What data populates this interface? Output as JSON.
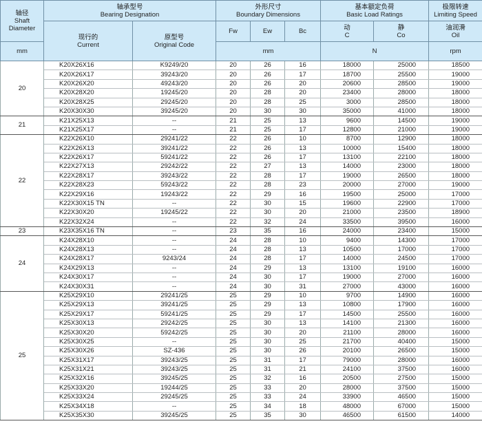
{
  "header": {
    "shaft": {
      "zh": "轴径",
      "en1": "Shaft",
      "en2": "Diameter",
      "unit": "mm"
    },
    "designation": {
      "zh": "轴承型号",
      "en": "Bearing Designation",
      "current_zh": "现行的",
      "current_en": "Current",
      "original_zh": "原型号",
      "original_en": "Original Code"
    },
    "boundary": {
      "zh": "外形尺寸",
      "en": "Boundary Dimensions",
      "fw": "Fw",
      "ew": "Ew",
      "bc": "Bc",
      "unit": "mm"
    },
    "load": {
      "zh": "基本额定负荷",
      "en": "Basic Load Ratings",
      "c_zh": "动",
      "c": "C",
      "co_zh": "静",
      "co": "Co",
      "unit": "N"
    },
    "speed": {
      "zh": "极限转速",
      "en": "Limiting Speed",
      "oil_zh": "油润滑",
      "oil": "Oil",
      "unit": "rpm"
    }
  },
  "groups": [
    {
      "d": "20",
      "rows": [
        [
          "K20X26X16",
          "K9249/20",
          "20",
          "26",
          "16",
          "18000",
          "25000",
          "18500"
        ],
        [
          "K20X26X17",
          "39243/20",
          "20",
          "26",
          "17",
          "18700",
          "25500",
          "19000"
        ],
        [
          "K20X26X20",
          "49243/20",
          "20",
          "26",
          "20",
          "20600",
          "28500",
          "19000"
        ],
        [
          "K20X28X20",
          "19245/20",
          "20",
          "28",
          "20",
          "23400",
          "28000",
          "18000"
        ],
        [
          "K20X28X25",
          "29245/20",
          "20",
          "28",
          "25",
          "3000",
          "28500",
          "18000"
        ],
        [
          "K20X30X30",
          "39245/20",
          "20",
          "30",
          "30",
          "35000",
          "41000",
          "18000"
        ]
      ]
    },
    {
      "d": "21",
      "rows": [
        [
          "K21X25X13",
          "--",
          "21",
          "25",
          "13",
          "9600",
          "14500",
          "19000"
        ],
        [
          "K21X25X17",
          "--",
          "21",
          "25",
          "17",
          "12800",
          "21000",
          "19000"
        ]
      ]
    },
    {
      "d": "22",
      "rows": [
        [
          "K22X26X10",
          "29241/22",
          "22",
          "26",
          "10",
          "8700",
          "12900",
          "18000"
        ],
        [
          "K22X26X13",
          "39241/22",
          "22",
          "26",
          "13",
          "10000",
          "15400",
          "18000"
        ],
        [
          "K22X26X17",
          "59241/22",
          "22",
          "26",
          "17",
          "13100",
          "22100",
          "18000"
        ],
        [
          "K22X27X13",
          "29242/22",
          "22",
          "27",
          "13",
          "14000",
          "23000",
          "18000"
        ],
        [
          "K22X28X17",
          "39243/22",
          "22",
          "28",
          "17",
          "19000",
          "26500",
          "18000"
        ],
        [
          "K22X28X23",
          "59243/22",
          "22",
          "28",
          "23",
          "20000",
          "27000",
          "19000"
        ],
        [
          "K22X29X16",
          "19243/22",
          "22",
          "29",
          "16",
          "19500",
          "25000",
          "17000"
        ],
        [
          "K22X30X15 TN",
          "--",
          "22",
          "30",
          "15",
          "19600",
          "22900",
          "17000"
        ],
        [
          "K22X30X20",
          "19245/22",
          "22",
          "30",
          "20",
          "21000",
          "23500",
          "18900"
        ],
        [
          "K22X32X24",
          "--",
          "22",
          "32",
          "24",
          "33500",
          "39500",
          "16000"
        ]
      ]
    },
    {
      "d": "23",
      "rows": [
        [
          "K23X35X16 TN",
          "--",
          "23",
          "35",
          "16",
          "24000",
          "23400",
          "15000"
        ]
      ]
    },
    {
      "d": "24",
      "rows": [
        [
          "K24X28X10",
          "--",
          "24",
          "28",
          "10",
          "9400",
          "14300",
          "17000"
        ],
        [
          "K24X28X13",
          "--",
          "24",
          "28",
          "13",
          "10500",
          "17000",
          "17000"
        ],
        [
          "K24X28X17",
          "9243/24",
          "24",
          "28",
          "17",
          "14000",
          "24500",
          "17000"
        ],
        [
          "K24X29X13",
          "--",
          "24",
          "29",
          "13",
          "13100",
          "19100",
          "16000"
        ],
        [
          "K24X30X17",
          "--",
          "24",
          "30",
          "17",
          "19000",
          "27000",
          "16000"
        ],
        [
          "K24X30X31",
          "--",
          "24",
          "30",
          "31",
          "27000",
          "43000",
          "16000"
        ]
      ]
    },
    {
      "d": "25",
      "rows": [
        [
          "K25X29X10",
          "29241/25",
          "25",
          "29",
          "10",
          "9700",
          "14900",
          "16000"
        ],
        [
          "K25X29X13",
          "39241/25",
          "25",
          "29",
          "13",
          "10800",
          "17900",
          "16000"
        ],
        [
          "K25X29X17",
          "59241/25",
          "25",
          "29",
          "17",
          "14500",
          "25500",
          "16000"
        ],
        [
          "K25X30X13",
          "29242/25",
          "25",
          "30",
          "13",
          "14100",
          "21300",
          "16000"
        ],
        [
          "K25X30X20",
          "59242/25",
          "25",
          "30",
          "20",
          "21100",
          "28000",
          "16000"
        ],
        [
          "K25X30X25",
          "--",
          "25",
          "30",
          "25",
          "21700",
          "40400",
          "15000"
        ],
        [
          "K25X30X26",
          "SZ-436",
          "25",
          "30",
          "26",
          "20100",
          "26500",
          "15000"
        ],
        [
          "K25X31X17",
          "39243/25",
          "25",
          "31",
          "17",
          "79000",
          "28000",
          "16000"
        ],
        [
          "K25X31X21",
          "39243/25",
          "25",
          "31",
          "21",
          "24100",
          "37500",
          "16000"
        ],
        [
          "K25X32X16",
          "39245/25",
          "25",
          "32",
          "16",
          "20500",
          "27500",
          "15000"
        ],
        [
          "K25X33X20",
          "19244/25",
          "25",
          "33",
          "20",
          "28000",
          "37500",
          "15000"
        ],
        [
          "K25X33X24",
          "29245/25",
          "25",
          "33",
          "24",
          "33900",
          "46500",
          "15000"
        ],
        [
          "K25X34X18",
          "--",
          "25",
          "34",
          "18",
          "48000",
          "67000",
          "15000"
        ],
        [
          "K25X35X30",
          "39245/25",
          "25",
          "35",
          "30",
          "46500",
          "61500",
          "14000"
        ]
      ]
    }
  ]
}
